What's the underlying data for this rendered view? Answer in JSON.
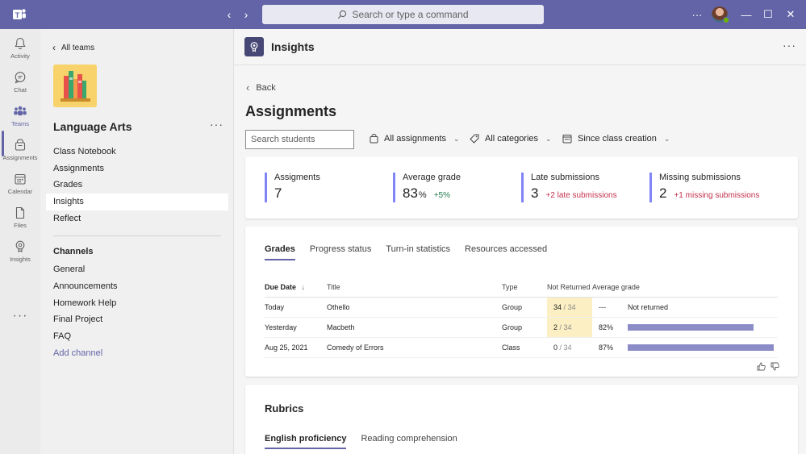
{
  "titlebar": {
    "search_placeholder": "Search or type a command",
    "back_arrow": "‹",
    "forward_arrow": "›",
    "more": "···",
    "minimize": "—",
    "maximize": "☐",
    "close": "✕"
  },
  "rail": {
    "items": [
      {
        "label": "Activity",
        "icon": "bell-icon"
      },
      {
        "label": "Chat",
        "icon": "chat-icon"
      },
      {
        "label": "Teams",
        "icon": "teams-icon"
      },
      {
        "label": "Assignments",
        "icon": "assignments-icon"
      },
      {
        "label": "Calendar",
        "icon": "calendar-icon"
      },
      {
        "label": "Files",
        "icon": "files-icon"
      },
      {
        "label": "Insights",
        "icon": "insights-icon"
      }
    ],
    "more": "···",
    "active": "Teams"
  },
  "team": {
    "all_teams": "All teams",
    "name": "Language Arts",
    "more": "···",
    "nav": [
      "Class Notebook",
      "Assignments",
      "Grades",
      "Insights",
      "Reflect"
    ],
    "active_nav": "Insights",
    "channels_heading": "Channels",
    "channels": [
      "General",
      "Announcements",
      "Homework Help",
      "Final Project",
      "FAQ"
    ],
    "add_channel": "Add channel"
  },
  "header": {
    "title": "Insights",
    "more": "···"
  },
  "page": {
    "back": "Back",
    "title": "Assignments",
    "search_placeholder": "Search students",
    "filters": [
      "All assignments",
      "All categories",
      "Since class creation"
    ]
  },
  "summary": [
    {
      "label": "Assigments",
      "value": "7",
      "suffix": "",
      "delta": ""
    },
    {
      "label": "Average grade",
      "value": "83",
      "suffix": "%",
      "delta": "+5%"
    },
    {
      "label": "Late submissions",
      "value": "3",
      "suffix": "",
      "delta": "+2 late submissions"
    },
    {
      "label": "Missing submissions",
      "value": "2",
      "suffix": "",
      "delta": "+1 missing submissions"
    }
  ],
  "grades": {
    "tabs": [
      "Grades",
      "Progress status",
      "Turn-in statistics",
      "Resources accessed"
    ],
    "active_tab": "Grades",
    "columns": [
      "Due Date",
      "Title",
      "Type",
      "Not Returned",
      "Average grade"
    ],
    "sort_arrow": "↓",
    "rows": [
      {
        "due": "Today",
        "title": "Othello",
        "type": "Group",
        "nr_a": "34",
        "nr_b": "/ 34",
        "avg": "---",
        "avg_text": "Not returned",
        "bar": 0
      },
      {
        "due": "Yesterday",
        "title": "Macbeth",
        "type": "Group",
        "nr_a": "2",
        "nr_b": "/ 34",
        "avg": "82%",
        "avg_text": "",
        "bar": 0.82
      },
      {
        "due": "Aug 25, 2021",
        "title": "Comedy of Errors",
        "type": "Class",
        "nr_a": "0",
        "nr_b": "/ 34",
        "avg": "87%",
        "avg_text": "",
        "bar": 0.87
      }
    ]
  },
  "rubrics": {
    "title": "Rubrics",
    "tabs": [
      "English proficiency",
      "Reading comprehension"
    ],
    "active_tab": "English proficiency"
  },
  "colors": {
    "brand": "#6264a7",
    "accent_bar": "#7f85f5",
    "positive": "#237b4b",
    "negative": "#c4314b",
    "highlight": "#fbefc3"
  }
}
